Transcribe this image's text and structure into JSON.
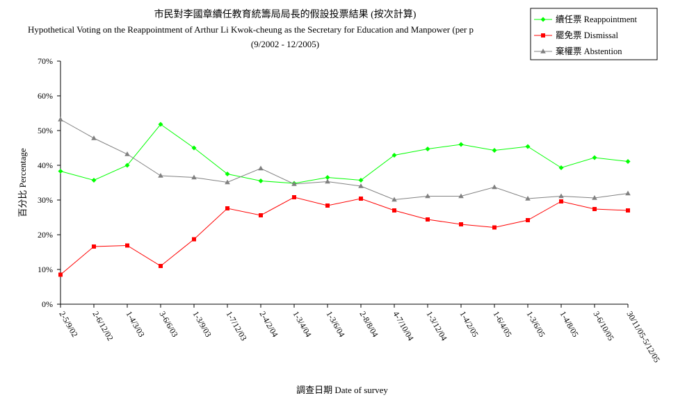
{
  "chart_data": {
    "type": "line",
    "title": "市民對李國章續任教育統籌局局長的假設投票結果 (按次計算)",
    "subtitle": "Hypothetical Voting on the Reappointment of Arthur Li Kwok-cheung as the Secretary for Education and Manpower (per p",
    "period": "(9/2002 - 12/2005)",
    "xlabel": "調查日期 Date of survey",
    "ylabel": "百分比 Percentage",
    "ylim": [
      0,
      70
    ],
    "yticks": [
      0,
      10,
      20,
      30,
      40,
      50,
      60,
      70
    ],
    "ytick_labels": [
      "0%",
      "10%",
      "20%",
      "30%",
      "40%",
      "50%",
      "60%",
      "70%"
    ],
    "grid": false,
    "legend_position": "top-right",
    "categories": [
      "2-5/9/02",
      "2-6/12/02",
      "1-4/3/03",
      "3-6/6/03",
      "1-3/9/03",
      "1-7/12/03",
      "2-4/2/04",
      "1-3/4/04",
      "1-3/6/04",
      "2-8/8/04",
      "4-7/10/04",
      "1-3/12/04",
      "1-4/2/05",
      "1-6/4/05",
      "1-3/6/05",
      "1-4/8/05",
      "3-6/10/05",
      "30/11/05-5/12/05"
    ],
    "series": [
      {
        "name": "續任票 Reappointment",
        "color": "#00ff00",
        "marker": "diamond",
        "values": [
          38.3,
          35.7,
          40.0,
          51.8,
          45.0,
          37.5,
          35.5,
          34.8,
          36.5,
          35.7,
          42.9,
          44.7,
          46.0,
          44.3,
          45.4,
          39.3,
          42.2,
          41.1
        ]
      },
      {
        "name": "罷免票 Dismissal",
        "color": "#ff0000",
        "marker": "square",
        "values": [
          8.5,
          16.6,
          16.9,
          11.0,
          18.7,
          27.6,
          25.6,
          30.8,
          28.4,
          30.4,
          27.0,
          24.4,
          23.0,
          22.1,
          24.2,
          29.6,
          27.4,
          27.0
        ]
      },
      {
        "name": "棄權票 Abstention",
        "color": "#808080",
        "marker": "triangle",
        "values": [
          53.2,
          47.8,
          43.2,
          37.0,
          36.5,
          35.1,
          39.1,
          34.6,
          35.3,
          34.0,
          30.1,
          31.1,
          31.1,
          33.7,
          30.4,
          31.1,
          30.6,
          31.9
        ]
      }
    ]
  }
}
